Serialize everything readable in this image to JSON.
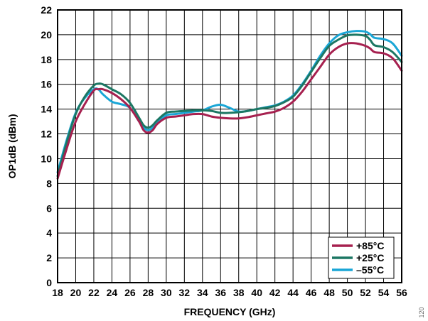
{
  "chart_data": {
    "type": "line",
    "title": "",
    "xlabel": "FREQUENCY (GHz)",
    "ylabel": "OP1dB (dBm)",
    "xlim": [
      18,
      56
    ],
    "ylim": [
      0,
      22
    ],
    "xticks": [
      18,
      20,
      22,
      24,
      26,
      28,
      30,
      32,
      34,
      36,
      38,
      40,
      42,
      44,
      46,
      48,
      50,
      52,
      54,
      56
    ],
    "yticks": [
      0,
      2,
      4,
      6,
      8,
      10,
      12,
      14,
      16,
      18,
      20,
      22
    ],
    "grid": true,
    "legend_position": "bottom-right",
    "figure_id": "120",
    "series": [
      {
        "name": "+85°C",
        "color": "#a6204f",
        "points": [
          [
            18,
            8.4
          ],
          [
            19,
            10.8
          ],
          [
            20,
            13.0
          ],
          [
            21,
            14.4
          ],
          [
            22,
            15.5
          ],
          [
            22.5,
            15.6
          ],
          [
            23,
            15.6
          ],
          [
            24,
            15.3
          ],
          [
            25,
            14.8
          ],
          [
            26,
            14.1
          ],
          [
            27,
            13.0
          ],
          [
            27.5,
            12.3
          ],
          [
            28,
            12.1
          ],
          [
            28.5,
            12.3
          ],
          [
            29,
            12.8
          ],
          [
            30,
            13.3
          ],
          [
            31,
            13.4
          ],
          [
            32,
            13.5
          ],
          [
            33,
            13.6
          ],
          [
            34,
            13.6
          ],
          [
            35,
            13.4
          ],
          [
            36,
            13.3
          ],
          [
            37,
            13.25
          ],
          [
            38,
            13.25
          ],
          [
            39,
            13.35
          ],
          [
            40,
            13.5
          ],
          [
            41,
            13.65
          ],
          [
            42,
            13.8
          ],
          [
            43,
            14.1
          ],
          [
            44,
            14.6
          ],
          [
            45,
            15.4
          ],
          [
            46,
            16.4
          ],
          [
            47,
            17.4
          ],
          [
            48,
            18.4
          ],
          [
            49,
            19.0
          ],
          [
            50,
            19.3
          ],
          [
            51,
            19.3
          ],
          [
            52,
            19.1
          ],
          [
            52.5,
            18.9
          ],
          [
            53,
            18.6
          ],
          [
            54,
            18.5
          ],
          [
            55,
            18.1
          ],
          [
            56,
            17.1
          ]
        ]
      },
      {
        "name": "+25°C",
        "color": "#1c7763",
        "points": [
          [
            18,
            8.6
          ],
          [
            19,
            11.3
          ],
          [
            20,
            13.6
          ],
          [
            21,
            15.0
          ],
          [
            22,
            15.9
          ],
          [
            22.5,
            16.05
          ],
          [
            23,
            16.0
          ],
          [
            24,
            15.6
          ],
          [
            25,
            15.2
          ],
          [
            26,
            14.5
          ],
          [
            27,
            13.3
          ],
          [
            27.5,
            12.7
          ],
          [
            28,
            12.5
          ],
          [
            28.5,
            12.7
          ],
          [
            29,
            13.1
          ],
          [
            30,
            13.7
          ],
          [
            31,
            13.8
          ],
          [
            32,
            13.85
          ],
          [
            33,
            13.9
          ],
          [
            34,
            13.9
          ],
          [
            35,
            13.85
          ],
          [
            36,
            13.7
          ],
          [
            37,
            13.7
          ],
          [
            38,
            13.75
          ],
          [
            39,
            13.85
          ],
          [
            40,
            14.0
          ],
          [
            41,
            14.1
          ],
          [
            42,
            14.25
          ],
          [
            43,
            14.55
          ],
          [
            44,
            15.0
          ],
          [
            45,
            15.9
          ],
          [
            46,
            17.0
          ],
          [
            47,
            18.1
          ],
          [
            48,
            19.1
          ],
          [
            49,
            19.6
          ],
          [
            50,
            19.95
          ],
          [
            51,
            20.0
          ],
          [
            52,
            19.9
          ],
          [
            52.5,
            19.6
          ],
          [
            53,
            19.15
          ],
          [
            54,
            19.0
          ],
          [
            55,
            18.6
          ],
          [
            56,
            17.8
          ]
        ]
      },
      {
        "name": "–55°C",
        "color": "#1aa6d6",
        "points": [
          [
            18,
            8.9
          ],
          [
            19,
            11.5
          ],
          [
            20,
            13.7
          ],
          [
            21,
            14.9
          ],
          [
            22,
            15.6
          ],
          [
            22.5,
            15.6
          ],
          [
            23,
            15.2
          ],
          [
            24,
            14.6
          ],
          [
            25,
            14.4
          ],
          [
            26,
            14.1
          ],
          [
            27,
            13.0
          ],
          [
            27.5,
            12.5
          ],
          [
            28,
            12.3
          ],
          [
            28.5,
            12.5
          ],
          [
            29,
            12.9
          ],
          [
            30,
            13.5
          ],
          [
            31,
            13.6
          ],
          [
            32,
            13.7
          ],
          [
            33,
            13.8
          ],
          [
            34,
            13.9
          ],
          [
            35,
            14.2
          ],
          [
            36,
            14.35
          ],
          [
            37,
            14.1
          ],
          [
            38,
            13.8
          ],
          [
            39,
            13.85
          ],
          [
            40,
            14.0
          ],
          [
            41,
            14.15
          ],
          [
            42,
            14.3
          ],
          [
            43,
            14.6
          ],
          [
            44,
            15.1
          ],
          [
            45,
            16.0
          ],
          [
            46,
            17.1
          ],
          [
            47,
            18.3
          ],
          [
            48,
            19.3
          ],
          [
            49,
            19.95
          ],
          [
            50,
            20.2
          ],
          [
            51,
            20.3
          ],
          [
            52,
            20.25
          ],
          [
            52.5,
            20.05
          ],
          [
            53,
            19.75
          ],
          [
            54,
            19.65
          ],
          [
            55,
            19.3
          ],
          [
            56,
            18.3
          ]
        ]
      }
    ]
  }
}
